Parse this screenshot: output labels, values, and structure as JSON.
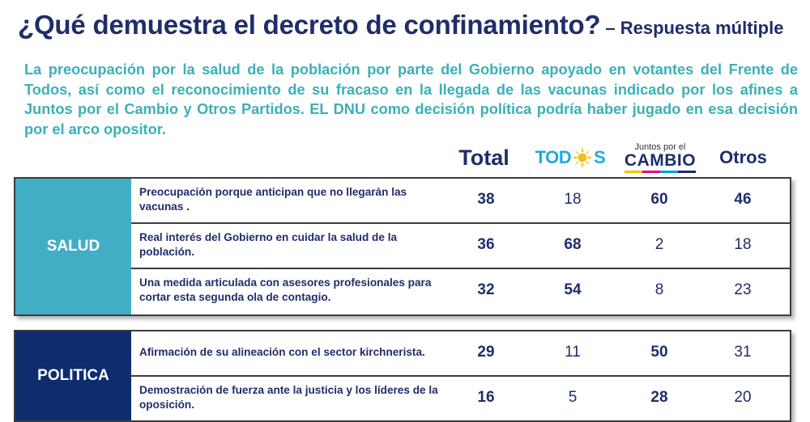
{
  "title": {
    "main": "¿Qué demuestra el decreto de confinamiento?",
    "sub": "– Respuesta múltiple"
  },
  "description": "La preocupación por la salud de la población por parte del Gobierno apoyado en votantes del Frente de Todos, así como el reconocimiento de su fracaso en la llegada de las vacunas  indicado por los afines a Juntos por el Cambio y Otros Partidos. EL DNU como decisión política podría haber jugado en esa decisión por el arco opositor.",
  "columns": {
    "total": "Total",
    "todos_logo": {
      "left": "TOD",
      "right": "S",
      "icon": "sun-icon"
    },
    "jxc_logo": {
      "top": "Juntos por el",
      "bottom": "CAMBIO"
    },
    "otros": "Otros"
  },
  "colors": {
    "title": "#1f2d6b",
    "description": "#3bb0b8",
    "salud": "#42aec6",
    "politica": "#0e2d6f",
    "todos": "#23a9e1",
    "todos_sun": "#f5c01b"
  },
  "groups": [
    {
      "category": "SALUD",
      "rows": [
        {
          "label": "Preocupación porque anticipan que no llegarán las vacunas .",
          "total": "38",
          "todos": "18",
          "jxc": "60",
          "otros": "46"
        },
        {
          "label": "Real interés del Gobierno en cuidar la salud de la población.",
          "total": "36",
          "todos": "68",
          "jxc": "2",
          "otros": "18"
        },
        {
          "label": "Una medida articulada con asesores profesionales para cortar esta segunda ola de contagio.",
          "total": "32",
          "todos": "54",
          "jxc": "8",
          "otros": "23"
        }
      ]
    },
    {
      "category": "POLITICA",
      "rows": [
        {
          "label": "Afirmación de su alineación con el sector kirchnerista.",
          "total": "29",
          "todos": "11",
          "jxc": "50",
          "otros": "31"
        },
        {
          "label": "Demostración de fuerza ante la justicia y los líderes de la oposición.",
          "total": "16",
          "todos": "5",
          "jxc": "28",
          "otros": "20"
        }
      ]
    }
  ]
}
